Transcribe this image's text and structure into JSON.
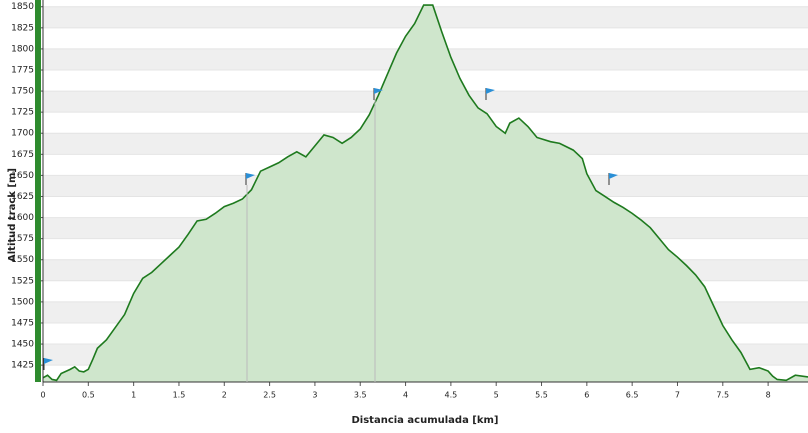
{
  "chart_data": {
    "type": "area",
    "xlabel": "Distancia acumulada [km]",
    "ylabel": "Altitud track [m]",
    "x": [
      0,
      0.05,
      0.1,
      0.15,
      0.2,
      0.3,
      0.35,
      0.4,
      0.45,
      0.5,
      0.55,
      0.6,
      0.7,
      0.8,
      0.9,
      1.0,
      1.1,
      1.2,
      1.3,
      1.4,
      1.5,
      1.6,
      1.7,
      1.8,
      1.9,
      2.0,
      2.1,
      2.2,
      2.3,
      2.4,
      2.5,
      2.6,
      2.7,
      2.8,
      2.9,
      3.0,
      3.1,
      3.2,
      3.3,
      3.4,
      3.5,
      3.6,
      3.7,
      3.8,
      3.9,
      4.0,
      4.1,
      4.2,
      4.3,
      4.4,
      4.5,
      4.6,
      4.7,
      4.8,
      4.9,
      5.0,
      5.1,
      5.15,
      5.25,
      5.35,
      5.45,
      5.6,
      5.7,
      5.85,
      5.95,
      6.0,
      6.1,
      6.2,
      6.3,
      6.4,
      6.5,
      6.6,
      6.7,
      6.8,
      6.9,
      7.0,
      7.1,
      7.2,
      7.3,
      7.4,
      7.5,
      7.6,
      7.7,
      7.8,
      7.9,
      8.0,
      8.05,
      8.1,
      8.2,
      8.3,
      8.44
    ],
    "series": [
      {
        "name": "Altitud track",
        "color": "#1e7a1e",
        "fill": "#cfe6cc",
        "values": [
          1410,
          1413,
          1408,
          1407,
          1415,
          1420,
          1423,
          1418,
          1417,
          1420,
          1432,
          1445,
          1455,
          1470,
          1485,
          1510,
          1528,
          1535,
          1545,
          1555,
          1565,
          1580,
          1596,
          1598,
          1605,
          1613,
          1617,
          1622,
          1633,
          1655,
          1660,
          1665,
          1672,
          1678,
          1672,
          1685,
          1698,
          1695,
          1688,
          1695,
          1705,
          1722,
          1745,
          1770,
          1795,
          1815,
          1830,
          1852,
          1852,
          1820,
          1790,
          1765,
          1745,
          1730,
          1723,
          1708,
          1700,
          1712,
          1718,
          1708,
          1695,
          1690,
          1688,
          1680,
          1670,
          1652,
          1632,
          1625,
          1618,
          1612,
          1605,
          1597,
          1588,
          1575,
          1562,
          1553,
          1543,
          1532,
          1518,
          1495,
          1472,
          1455,
          1440,
          1420,
          1422,
          1418,
          1412,
          1408,
          1407,
          1413,
          1411
        ]
      }
    ],
    "xlim": [
      0,
      8.44
    ],
    "ylim": [
      1405,
      1858
    ],
    "xticks": [
      0,
      0.5,
      1,
      1.5,
      2,
      2.5,
      3,
      3.5,
      4,
      4.5,
      5,
      5.5,
      6,
      6.5,
      7,
      7.5,
      8
    ],
    "yticks": [
      1425,
      1450,
      1475,
      1500,
      1525,
      1550,
      1575,
      1600,
      1625,
      1650,
      1675,
      1700,
      1725,
      1750,
      1775,
      1800,
      1825,
      1850
    ],
    "grid": true
  }
}
